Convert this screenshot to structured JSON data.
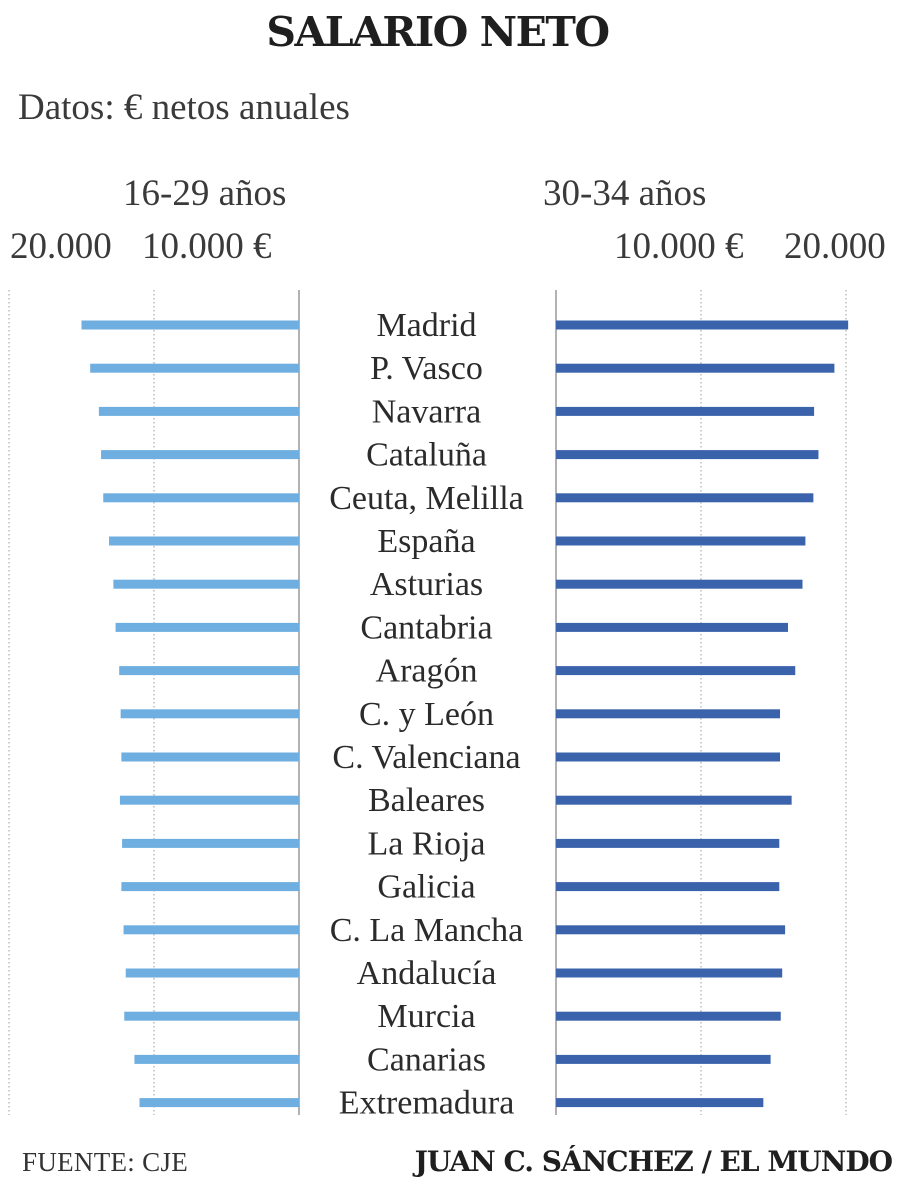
{
  "colors": {
    "left_series": "#6eaee0",
    "right_series": "#3b63ac",
    "axis": "#999999"
  },
  "header": {
    "title": "SALARIO NETO",
    "subtitle": "Datos: € netos anuales"
  },
  "footer": {
    "source": "FUENTE: CJE",
    "credit": "JUAN C. SÁNCHEZ / EL MUNDO"
  },
  "chart_data": {
    "type": "bar",
    "orientation": "horizontal",
    "layout": "back-to-back",
    "grid": true,
    "categories": [
      "Madrid",
      "P. Vasco",
      "Navarra",
      "Cataluña",
      "Ceuta, Melilla",
      "España",
      "Asturias",
      "Cantabria",
      "Aragón",
      "C. y León",
      "C. Valenciana",
      "Baleares",
      "La Rioja",
      "Galicia",
      "C. La Mancha",
      "Andalucía",
      "Murcia",
      "Canarias",
      "Extremadura"
    ],
    "panels": [
      {
        "name": "16-29 años",
        "tick_labels": [
          "20.000",
          "10.000 €"
        ],
        "xlim": [
          0,
          20000
        ],
        "values": [
          15000,
          14400,
          13800,
          13650,
          13500,
          13100,
          12800,
          12650,
          12400,
          12300,
          12250,
          12350,
          12200,
          12250,
          12100,
          11950,
          12050,
          11350,
          11000
        ]
      },
      {
        "name": "30-34 años",
        "tick_labels": [
          "10.000 €",
          "20.000"
        ],
        "xlim": [
          0,
          20000
        ],
        "values": [
          20150,
          19200,
          17800,
          18100,
          17750,
          17200,
          17000,
          16000,
          16500,
          15450,
          15450,
          16250,
          15400,
          15400,
          15800,
          15600,
          15500,
          14800,
          14300
        ]
      }
    ]
  }
}
